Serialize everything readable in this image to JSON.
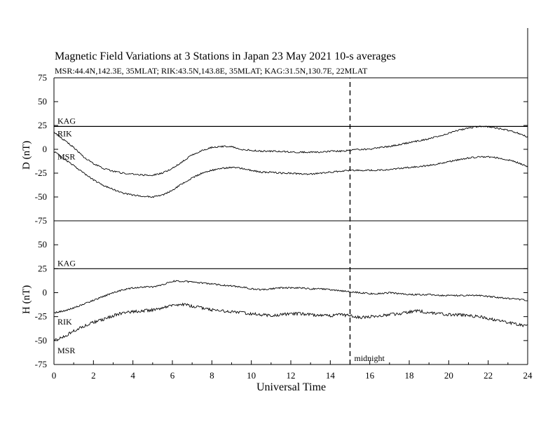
{
  "header": {
    "title": "Magnetic Field Variations at 3 Stations in Japan        23 May      2021      10-s averages",
    "subtitle": "MSR:44.4N,142.3E, 35MLAT;  RIK:43.5N,143.8E, 35MLAT;  KAG:31.5N,130.7E, 22MLAT"
  },
  "chart_data": [
    {
      "type": "line",
      "ylabel": "D (nT)",
      "xlim": [
        0,
        24
      ],
      "ylim": [
        -75,
        75
      ],
      "yticks": [
        75,
        50,
        25,
        0,
        -25,
        -50,
        -75
      ],
      "series": [
        {
          "name": "KAG",
          "x": [
            0,
            24
          ],
          "y": [
            24,
            24
          ]
        },
        {
          "name": "RIK",
          "x": [
            0,
            0.5,
            1,
            1.5,
            2,
            2.5,
            3,
            3.5,
            4,
            4.5,
            5,
            5.5,
            6,
            6.5,
            7,
            7.5,
            8,
            8.5,
            9,
            9.5,
            10,
            10.5,
            11,
            11.5,
            12,
            12.5,
            13,
            13.5,
            14,
            14.5,
            15,
            15.5,
            16,
            16.5,
            17,
            17.5,
            18,
            18.5,
            19,
            19.5,
            20,
            20.5,
            21,
            21.5,
            22,
            22.5,
            23,
            23.5,
            24
          ],
          "y": [
            18,
            10,
            2,
            -8,
            -15,
            -20,
            -23,
            -25,
            -26,
            -27,
            -27,
            -25,
            -20,
            -13,
            -6,
            -1,
            2,
            3,
            3,
            0,
            -1,
            -2,
            -2,
            -2,
            -3,
            -3,
            -3,
            -3,
            -2,
            -2,
            -1,
            0,
            0,
            2,
            3,
            5,
            7,
            9,
            11,
            14,
            17,
            20,
            22,
            24,
            24,
            22,
            20,
            17,
            13
          ]
        },
        {
          "name": "MSR",
          "x": [
            0,
            0.5,
            1,
            1.5,
            2,
            2.5,
            3,
            3.5,
            4,
            4.5,
            5,
            5.5,
            6,
            6.5,
            7,
            7.5,
            8,
            8.5,
            9,
            9.5,
            10,
            10.5,
            11,
            11.5,
            12,
            12.5,
            13,
            13.5,
            14,
            14.5,
            15,
            15.5,
            16,
            16.5,
            17,
            17.5,
            18,
            18.5,
            19,
            19.5,
            20,
            20.5,
            21,
            21.5,
            22,
            22.5,
            23,
            23.5,
            24
          ],
          "y": [
            -2,
            -10,
            -17,
            -25,
            -32,
            -38,
            -42,
            -46,
            -48,
            -49,
            -50,
            -48,
            -43,
            -36,
            -30,
            -25,
            -22,
            -20,
            -19,
            -20,
            -22,
            -24,
            -24,
            -25,
            -25,
            -26,
            -26,
            -25,
            -24,
            -23,
            -22,
            -22,
            -22,
            -22,
            -21,
            -20,
            -19,
            -18,
            -17,
            -15,
            -13,
            -11,
            -9,
            -8,
            -8,
            -9,
            -11,
            -14,
            -18
          ]
        }
      ],
      "labels": [
        "KAG",
        "RIK",
        "MSR"
      ]
    },
    {
      "type": "line",
      "ylabel": "H (nT)",
      "xlabel": "Universal Time",
      "xlim": [
        0,
        24
      ],
      "xticks": [
        0,
        2,
        4,
        6,
        8,
        10,
        12,
        14,
        16,
        18,
        20,
        22,
        24
      ],
      "ylim": [
        -75,
        75
      ],
      "yticks": [
        75,
        50,
        25,
        0,
        -25,
        -50,
        -75
      ],
      "series": [
        {
          "name": "KAG",
          "x": [
            0,
            24
          ],
          "y": [
            25,
            25
          ]
        },
        {
          "name": "RIK",
          "x": [
            0,
            0.5,
            1,
            1.5,
            2,
            2.5,
            3,
            3.5,
            4,
            4.5,
            5,
            5.5,
            6,
            6.5,
            7,
            7.5,
            8,
            8.5,
            9,
            9.5,
            10,
            10.5,
            11,
            11.5,
            12,
            12.5,
            13,
            13.5,
            14,
            14.5,
            15,
            15.5,
            16,
            16.5,
            17,
            17.5,
            18,
            18.5,
            19,
            19.5,
            20,
            20.5,
            21,
            21.5,
            22,
            22.5,
            23,
            23.5,
            24
          ],
          "y": [
            -21,
            -19,
            -16,
            -12,
            -8,
            -4,
            0,
            3,
            5,
            6,
            6,
            8,
            12,
            12,
            11,
            10,
            9,
            8,
            7,
            6,
            4,
            3,
            4,
            5,
            5,
            5,
            4,
            4,
            3,
            2,
            1,
            0,
            -1,
            -1,
            0,
            -1,
            -2,
            -2,
            -2,
            -3,
            -3,
            -3,
            -3,
            -3,
            -4,
            -5,
            -6,
            -7,
            -8
          ]
        },
        {
          "name": "MSR",
          "x": [
            0,
            0.5,
            1,
            1.5,
            2,
            2.5,
            3,
            3.5,
            4,
            4.5,
            5,
            5.5,
            6,
            6.5,
            7,
            7.5,
            8,
            8.5,
            9,
            9.5,
            10,
            10.5,
            11,
            11.5,
            12,
            12.5,
            13,
            13.5,
            14,
            14.5,
            15,
            15.5,
            16,
            16.5,
            17,
            17.5,
            18,
            18.5,
            19,
            19.5,
            20,
            20.5,
            21,
            21.5,
            22,
            22.5,
            23,
            23.5,
            24
          ],
          "y": [
            -50,
            -46,
            -40,
            -35,
            -31,
            -28,
            -24,
            -21,
            -20,
            -19,
            -18,
            -16,
            -13,
            -12,
            -14,
            -16,
            -18,
            -19,
            -20,
            -21,
            -22,
            -23,
            -24,
            -23,
            -22,
            -22,
            -23,
            -24,
            -24,
            -23,
            -24,
            -26,
            -25,
            -24,
            -23,
            -22,
            -20,
            -19,
            -21,
            -22,
            -23,
            -23,
            -24,
            -25,
            -27,
            -29,
            -31,
            -33,
            -35
          ]
        }
      ],
      "labels": [
        "KAG",
        "RIK",
        "MSR"
      ],
      "annotation": {
        "text": "midnight",
        "x": 15
      }
    }
  ]
}
